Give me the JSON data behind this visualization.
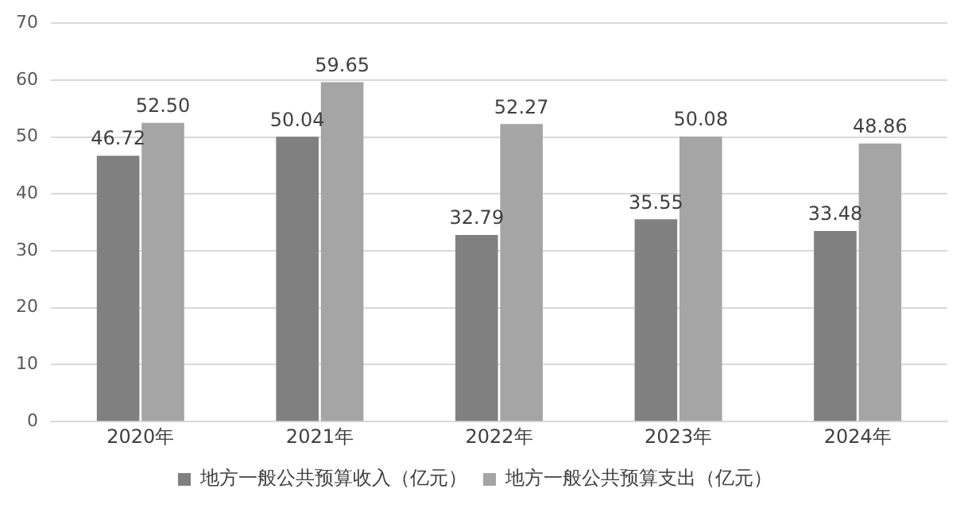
{
  "chart_data": {
    "type": "bar",
    "categories": [
      "2020年",
      "2021年",
      "2022年",
      "2023年",
      "2024年"
    ],
    "series": [
      {
        "name": "地方一般公共预算收入（亿元）",
        "color": "#808080",
        "values": [
          46.72,
          50.04,
          32.79,
          35.55,
          33.48
        ]
      },
      {
        "name": "地方一般公共预算支出（亿元）",
        "color": "#a5a5a5",
        "values": [
          52.5,
          59.65,
          52.27,
          50.08,
          48.86
        ]
      }
    ],
    "value_labels": [
      [
        "46.72",
        "50.04",
        "32.79",
        "35.55",
        "33.48"
      ],
      [
        "52.50",
        "59.65",
        "52.27",
        "50.08",
        "48.86"
      ]
    ],
    "ylim": [
      0,
      70
    ],
    "yticks": [
      0,
      10,
      20,
      30,
      40,
      50,
      60,
      70
    ],
    "grid": "y",
    "legend": "bottom"
  }
}
